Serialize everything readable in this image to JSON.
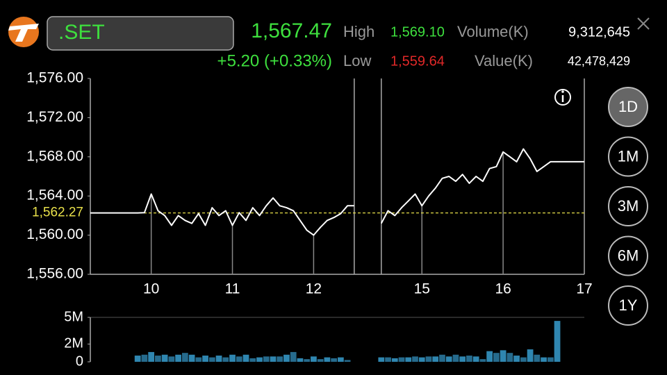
{
  "header": {
    "symbol": ".SET",
    "last": "1,567.47",
    "change": "+5.20 (+0.33%)",
    "high_label": "High",
    "high": "1,569.10",
    "low_label": "Low",
    "low": "1,559.64",
    "volume_label": "Volume(K)",
    "volume": "9,312,645",
    "value_label": "Value(K)",
    "value": "42,478,429"
  },
  "range_buttons": [
    "1D",
    "1M",
    "3M",
    "6M",
    "1Y"
  ],
  "selected_range": "1D",
  "chart_data": [
    {
      "type": "line",
      "color": "#ffffff",
      "categories": [
        null,
        null,
        null,
        null,
        null,
        null,
        null,
        null,
        null,
        "10",
        null,
        null,
        null,
        null,
        null,
        null,
        null,
        null,
        null,
        null,
        null,
        "11",
        null,
        null,
        null,
        null,
        null,
        null,
        null,
        null,
        null,
        null,
        null,
        "12",
        null,
        null,
        null,
        null,
        null,
        null,
        null,
        null,
        null,
        null,
        null,
        null,
        null,
        null,
        null,
        "15",
        null,
        null,
        null,
        null,
        null,
        null,
        null,
        null,
        null,
        null,
        null,
        "16",
        null,
        null,
        null,
        null,
        null,
        null,
        null,
        null,
        null,
        null,
        null,
        "17"
      ],
      "values": [
        1562.27,
        1562.27,
        1562.27,
        1562.27,
        1562.27,
        1562.27,
        1562.27,
        1562.27,
        1562.3,
        1564.2,
        1562.5,
        1562.0,
        1561.0,
        1562.0,
        1561.5,
        1561.2,
        1562.2,
        1561.0,
        1562.8,
        1562.0,
        1562.5,
        1561.0,
        1562.3,
        1561.5,
        1562.8,
        1562.0,
        1563.0,
        1563.8,
        1563.0,
        1562.8,
        1562.5,
        1561.5,
        1560.5,
        1560.0,
        1560.8,
        1561.5,
        1561.8,
        1562.2,
        1563.0,
        1563.0,
        null,
        null,
        null,
        1561.2,
        1562.5,
        1562.0,
        1562.8,
        1563.5,
        1564.2,
        1563.0,
        1564.0,
        1564.8,
        1565.8,
        1566.0,
        1565.5,
        1566.2,
        1565.3,
        1566.0,
        1565.5,
        1566.8,
        1567.0,
        1568.5,
        1568.0,
        1567.5,
        1568.8,
        1567.8,
        1566.5,
        1567.0,
        1567.5,
        1567.5,
        1567.5,
        1567.5,
        1567.5,
        1567.5
      ],
      "ylim": [
        1556,
        1576
      ],
      "yticks": [
        {
          "value": 1556,
          "label": "1,556.00"
        },
        {
          "value": 1560,
          "label": "1,560.00"
        },
        {
          "value": 1564,
          "label": "1,564.00"
        },
        {
          "value": 1568,
          "label": "1,568.00"
        },
        {
          "value": 1572,
          "label": "1,572.00"
        },
        {
          "value": 1576,
          "label": "1,576.00"
        }
      ],
      "reference": {
        "value": 1562.27,
        "label": "1,562.27",
        "color": "#e8e04a"
      }
    },
    {
      "type": "bar",
      "color": "#2f86b0",
      "values": [
        null,
        null,
        null,
        null,
        null,
        null,
        null,
        700000,
        800000,
        1100000,
        700000,
        800000,
        600000,
        800000,
        1000000,
        800000,
        500000,
        700000,
        500000,
        700000,
        500000,
        800000,
        600000,
        800000,
        400000,
        500000,
        600000,
        600000,
        600000,
        800000,
        1100000,
        400000,
        300000,
        600000,
        300000,
        500000,
        400000,
        500000,
        200000,
        null,
        null,
        null,
        null,
        500000,
        500000,
        400000,
        500000,
        500000,
        600000,
        500000,
        600000,
        600000,
        800000,
        600000,
        800000,
        600000,
        700000,
        600000,
        300000,
        1200000,
        1000000,
        1300000,
        1000000,
        700000,
        500000,
        1400000,
        800000,
        500000,
        500000,
        4600000,
        null,
        null,
        null,
        null
      ],
      "ylim": [
        0,
        5000000
      ],
      "yticks": [
        0,
        {
          "value": 2000000,
          "label": "2M"
        },
        {
          "value": 5000000,
          "label": "5M"
        }
      ]
    }
  ]
}
